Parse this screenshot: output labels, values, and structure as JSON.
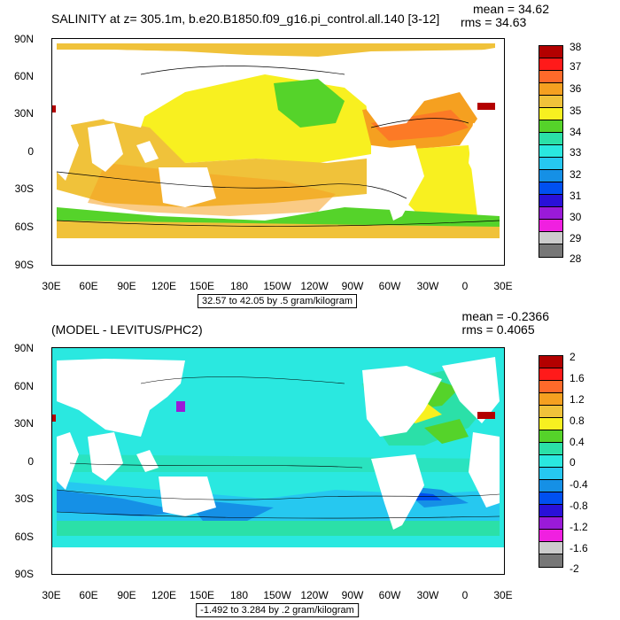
{
  "panel1": {
    "title": "SALINITY at z= 305.1m, b.e20.B1850.f09_g16.pi_control.all.140 [3-12]",
    "mean": "mean = 34.62",
    "rms": "rms = 34.63",
    "contour_info": "32.57 to 42.05 by .5 gram/kilogram",
    "colorbar_labels": [
      "38",
      "37",
      "36",
      "35",
      "34",
      "33",
      "32",
      "31",
      "30",
      "29",
      "28"
    ],
    "colors": [
      "#b30000",
      "#ff1a1a",
      "#ff6a2a",
      "#f5a020",
      "#f0c23a",
      "#f8f020",
      "#55d32a",
      "#2be0a8",
      "#2ae8e0",
      "#26c8f0",
      "#1590e6",
      "#0050f0",
      "#2a10d8",
      "#9a1ad8",
      "#f020e0",
      "#cccccc",
      "#777777"
    ]
  },
  "panel2": {
    "title": "(MODEL - LEVITUS/PHC2)",
    "mean": "mean = -0.2366",
    "rms": "rms = 0.4065",
    "contour_info": "-1.492 to 3.284 by .2 gram/kilogram",
    "colorbar_labels": [
      "2",
      "1.6",
      "1.2",
      "0.8",
      "0.4",
      "0",
      "-0.4",
      "-0.8",
      "-1.2",
      "-1.6",
      "-2"
    ],
    "colors": [
      "#b30000",
      "#ff1a1a",
      "#ff6a2a",
      "#f5a020",
      "#f0c23a",
      "#f8f020",
      "#55d32a",
      "#2be0a8",
      "#2ae8e0",
      "#26c8f0",
      "#1590e6",
      "#0050f0",
      "#2a10d8",
      "#9a1ad8",
      "#f020e0",
      "#cccccc",
      "#777777"
    ]
  },
  "axes": {
    "lat_labels": [
      "90N",
      "60N",
      "30N",
      "0",
      "30S",
      "60S",
      "90S"
    ],
    "lon_labels": [
      "30E",
      "60E",
      "90E",
      "120E",
      "150E",
      "180",
      "150W",
      "120W",
      "90W",
      "60W",
      "30W",
      "0",
      "30E"
    ]
  }
}
